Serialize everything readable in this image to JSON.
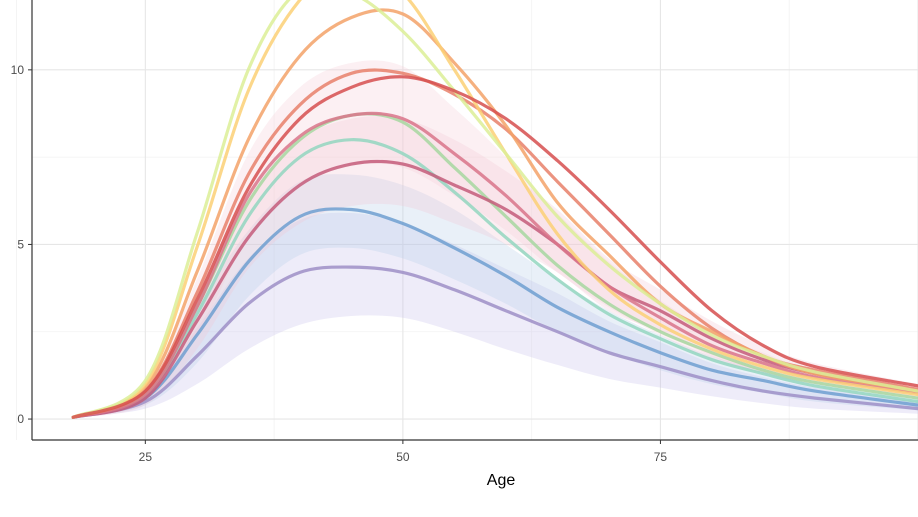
{
  "chart_data": {
    "type": "line",
    "title": "",
    "xlabel": "Age",
    "ylabel": "",
    "xlim": [
      14,
      100
    ],
    "ylim": [
      -0.6,
      12
    ],
    "x_ticks": [
      "25",
      "50",
      "75"
    ],
    "y_ticks": [
      "0",
      "5",
      "10"
    ],
    "grid": true,
    "legend": "bottom (cut off)",
    "series": [
      {
        "color": "#9e8fc7",
        "band_color": "#c8c0ea",
        "x": [
          18,
          25,
          30,
          35,
          40,
          45,
          50,
          55,
          60,
          65,
          70,
          75,
          80,
          85,
          90,
          100
        ],
        "y": [
          0.05,
          0.5,
          1.8,
          3.3,
          4.2,
          4.35,
          4.2,
          3.7,
          3.1,
          2.5,
          1.9,
          1.5,
          1.1,
          0.8,
          0.6,
          0.3
        ],
        "lo": [
          0.03,
          0.3,
          1.0,
          2.0,
          2.7,
          2.95,
          2.9,
          2.5,
          2.0,
          1.55,
          1.15,
          0.9,
          0.65,
          0.45,
          0.3,
          0.15
        ],
        "hi": [
          0.08,
          0.7,
          2.6,
          4.6,
          5.7,
          5.9,
          5.6,
          5.0,
          4.3,
          3.6,
          2.8,
          2.2,
          1.6,
          1.2,
          0.9,
          0.5
        ]
      },
      {
        "color": "#6f9fd0",
        "band_color": "#b7cde8",
        "x": [
          18,
          25,
          30,
          35,
          40,
          45,
          50,
          55,
          60,
          65,
          70,
          75,
          80,
          85,
          90,
          100
        ],
        "y": [
          0.05,
          0.6,
          2.4,
          4.5,
          5.8,
          6.0,
          5.6,
          4.9,
          4.1,
          3.2,
          2.5,
          1.9,
          1.4,
          1.1,
          0.8,
          0.4
        ],
        "lo": [
          0.03,
          0.4,
          1.6,
          3.5,
          4.7,
          4.9,
          4.6,
          4.0,
          3.3,
          2.5,
          1.9,
          1.4,
          1.0,
          0.75,
          0.5,
          0.25
        ],
        "hi": [
          0.08,
          0.8,
          3.2,
          5.4,
          6.8,
          7.0,
          6.7,
          6.0,
          5.0,
          4.0,
          3.1,
          2.4,
          1.8,
          1.4,
          1.0,
          0.6
        ]
      },
      {
        "color": "#93d6bf",
        "band_color": "#cdeee0",
        "x": [
          18,
          25,
          30,
          35,
          40,
          45,
          50,
          55,
          60,
          65,
          70,
          75,
          80,
          85,
          90,
          100
        ],
        "y": [
          0.05,
          0.7,
          3.0,
          5.8,
          7.5,
          8.0,
          7.6,
          6.5,
          5.2,
          4.0,
          3.0,
          2.3,
          1.7,
          1.3,
          0.95,
          0.5
        ]
      },
      {
        "color": "#a7d7a0",
        "band_color": "#d6eed0",
        "x": [
          18,
          25,
          30,
          35,
          40,
          45,
          50,
          55,
          60,
          65,
          70,
          75,
          80,
          85,
          90,
          100
        ],
        "y": [
          0.05,
          0.7,
          3.2,
          6.2,
          8.0,
          8.7,
          8.5,
          7.2,
          5.8,
          4.4,
          3.3,
          2.5,
          1.9,
          1.4,
          1.05,
          0.6
        ]
      },
      {
        "color": "#c45c7a",
        "band_color": "#f2c8d4",
        "x": [
          18,
          25,
          30,
          35,
          40,
          45,
          50,
          55,
          60,
          65,
          70,
          75,
          80,
          85,
          90,
          100
        ],
        "y": [
          0.05,
          0.6,
          2.8,
          5.2,
          6.7,
          7.3,
          7.3,
          6.7,
          6.0,
          5.0,
          3.8,
          3.1,
          2.3,
          1.7,
          1.3,
          0.8
        ],
        "lo": [
          0.03,
          0.4,
          2.0,
          4.3,
          5.6,
          6.1,
          6.1,
          5.6,
          5.0,
          4.2,
          3.1,
          2.5,
          1.8,
          1.3,
          1.0,
          0.6
        ],
        "hi": [
          0.08,
          0.8,
          3.7,
          6.4,
          8.0,
          8.6,
          8.6,
          8.0,
          7.1,
          6.0,
          4.6,
          3.7,
          2.8,
          2.1,
          1.6,
          1.0
        ]
      },
      {
        "color": "#d9748a",
        "band_color": "#f6cdd6",
        "x": [
          18,
          25,
          30,
          35,
          40,
          45,
          50,
          55,
          60,
          65,
          70,
          75,
          80,
          85,
          90,
          100
        ],
        "y": [
          0.05,
          0.7,
          3.2,
          6.4,
          8.1,
          8.7,
          8.6,
          7.6,
          6.4,
          5.0,
          3.8,
          2.9,
          2.1,
          1.6,
          1.2,
          0.75
        ],
        "lo": [
          0.03,
          0.5,
          2.4,
          5.2,
          6.7,
          7.3,
          7.2,
          6.4,
          5.4,
          4.2,
          3.2,
          2.4,
          1.7,
          1.3,
          1.0,
          0.6
        ],
        "hi": [
          0.08,
          0.9,
          4.0,
          7.6,
          9.5,
          10.2,
          10.1,
          8.9,
          7.5,
          5.9,
          4.5,
          3.4,
          2.5,
          1.9,
          1.4,
          0.9
        ]
      },
      {
        "color": "#e8806a",
        "x": [
          18,
          25,
          30,
          35,
          40,
          45,
          50,
          55,
          60,
          65,
          70,
          75,
          80,
          85,
          90,
          100
        ],
        "y": [
          0.05,
          0.8,
          3.6,
          7.0,
          9.0,
          9.9,
          9.9,
          9.3,
          8.3,
          6.8,
          5.3,
          3.8,
          2.6,
          1.8,
          1.4,
          0.85
        ]
      },
      {
        "color": "#f3a268",
        "x": [
          18,
          25,
          30,
          35,
          40,
          45,
          50,
          55,
          60,
          65,
          70,
          75,
          80,
          85,
          90,
          100
        ],
        "y": [
          0.05,
          0.9,
          4.2,
          8.0,
          10.4,
          11.5,
          11.6,
          10.2,
          8.4,
          6.2,
          4.7,
          3.3,
          2.5,
          1.8,
          1.3,
          0.8
        ]
      },
      {
        "color": "#fbd075",
        "x": [
          18,
          25,
          30,
          35,
          40,
          45,
          50,
          55,
          60,
          65,
          70,
          75,
          80,
          85,
          90,
          100
        ],
        "y": [
          0.05,
          1.0,
          4.9,
          9.4,
          12.0,
          13.0,
          12.2,
          10.0,
          7.6,
          5.3,
          3.7,
          2.7,
          2.0,
          1.5,
          1.15,
          0.7
        ]
      },
      {
        "color": "#dcee96",
        "x": [
          18,
          25,
          30,
          35,
          40,
          45,
          50,
          55,
          60,
          65,
          70,
          75,
          80,
          85,
          90,
          100
        ],
        "y": [
          0.05,
          1.1,
          5.3,
          10.0,
          12.3,
          12.2,
          11.1,
          9.4,
          7.6,
          5.8,
          4.4,
          3.3,
          2.4,
          1.8,
          1.35,
          0.8
        ]
      },
      {
        "color": "#d64f4f",
        "x": [
          18,
          25,
          30,
          35,
          40,
          45,
          50,
          55,
          60,
          65,
          70,
          75,
          80,
          85,
          90,
          100
        ],
        "y": [
          0.05,
          0.8,
          3.4,
          6.6,
          8.6,
          9.5,
          9.8,
          9.4,
          8.6,
          7.4,
          6.0,
          4.5,
          3.1,
          2.1,
          1.5,
          0.95
        ]
      }
    ]
  }
}
